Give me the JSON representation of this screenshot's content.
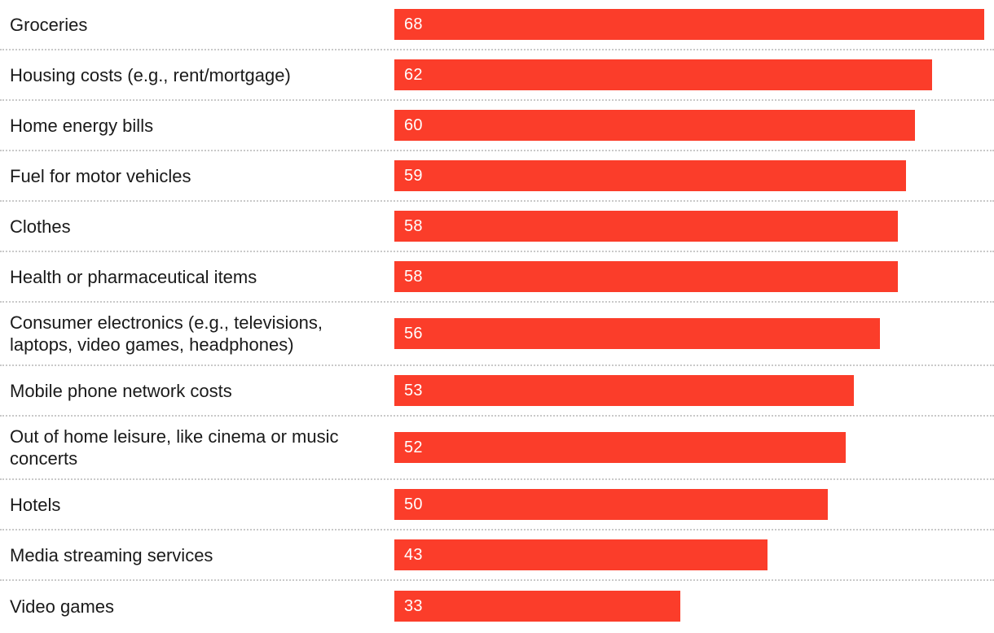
{
  "chart_data": {
    "type": "bar",
    "orientation": "horizontal",
    "categories": [
      "Groceries",
      "Housing costs (e.g., rent/mortgage)",
      "Home energy bills",
      "Fuel for motor vehicles",
      "Clothes",
      "Health or pharmaceutical items",
      "Consumer electronics (e.g., televisions, laptops, video games, headphones)",
      "Mobile phone network costs",
      "Out of home leisure, like cinema or music concerts",
      "Hotels",
      "Media streaming services",
      "Video games"
    ],
    "values": [
      68,
      62,
      60,
      59,
      58,
      58,
      56,
      53,
      52,
      50,
      43,
      33
    ],
    "xlim": [
      0,
      68
    ],
    "bar_color": "#fb3d2a",
    "value_label_color": "#ffffff",
    "label_color": "#1a1a1a",
    "separator_color": "#c9c9c9",
    "grid": "dotted horizontal separators between rows",
    "legend": "none",
    "title": ""
  }
}
